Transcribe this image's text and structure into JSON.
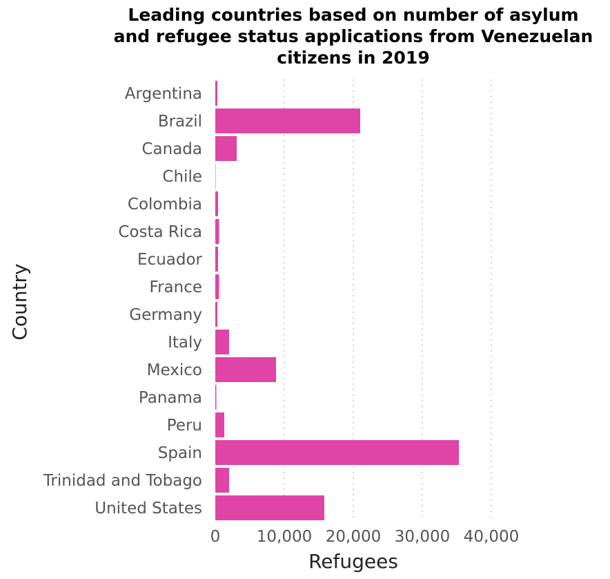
{
  "chart_data": {
    "type": "bar",
    "orientation": "horizontal",
    "title_lines": [
      "Leading countries based on number of asylum",
      "and refugee status applications from Venezuelan",
      "citizens in 2019"
    ],
    "xlabel": "Refugees",
    "ylabel": "Country",
    "xlim": [
      0,
      40000
    ],
    "xticks": [
      0,
      10000,
      20000,
      30000,
      40000
    ],
    "xtick_labels": [
      "0",
      "10,000",
      "20,000",
      "30,000",
      "40,000"
    ],
    "categories": [
      "Argentina",
      "Brazil",
      "Canada",
      "Chile",
      "Colombia",
      "Costa Rica",
      "Ecuador",
      "France",
      "Germany",
      "Italy",
      "Mexico",
      "Panama",
      "Peru",
      "Spain",
      "Trinidad and Tobago",
      "United States"
    ],
    "values": [
      300,
      21000,
      3100,
      50,
      400,
      550,
      400,
      550,
      300,
      2000,
      8800,
      150,
      1300,
      35300,
      2000,
      15800
    ],
    "bar_color": "#e044a7",
    "grid": "vertical dotted"
  }
}
